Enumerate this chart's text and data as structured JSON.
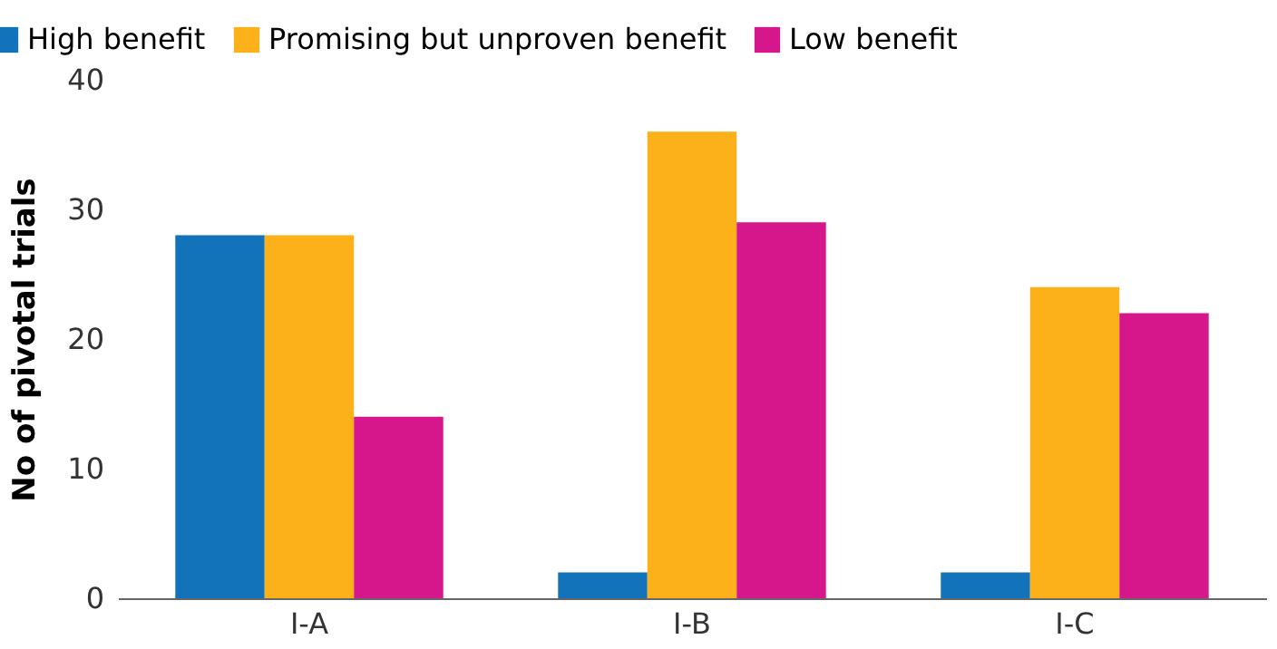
{
  "chart_data": {
    "type": "bar",
    "ylabel": "No of pivotal trials",
    "categories": [
      "I-A",
      "I-B",
      "I-C"
    ],
    "series": [
      {
        "name": "High benefit",
        "color": "#1273ba",
        "values": [
          28,
          2,
          2
        ]
      },
      {
        "name": "Promising but unproven benefit",
        "color": "#fcb11b",
        "values": [
          28,
          36,
          24
        ]
      },
      {
        "name": "Low benefit",
        "color": "#d6168b",
        "values": [
          14,
          29,
          22
        ]
      }
    ],
    "ylim": [
      0,
      40
    ],
    "yticks": [
      0,
      10,
      20,
      30,
      40
    ],
    "legend": "top left"
  }
}
